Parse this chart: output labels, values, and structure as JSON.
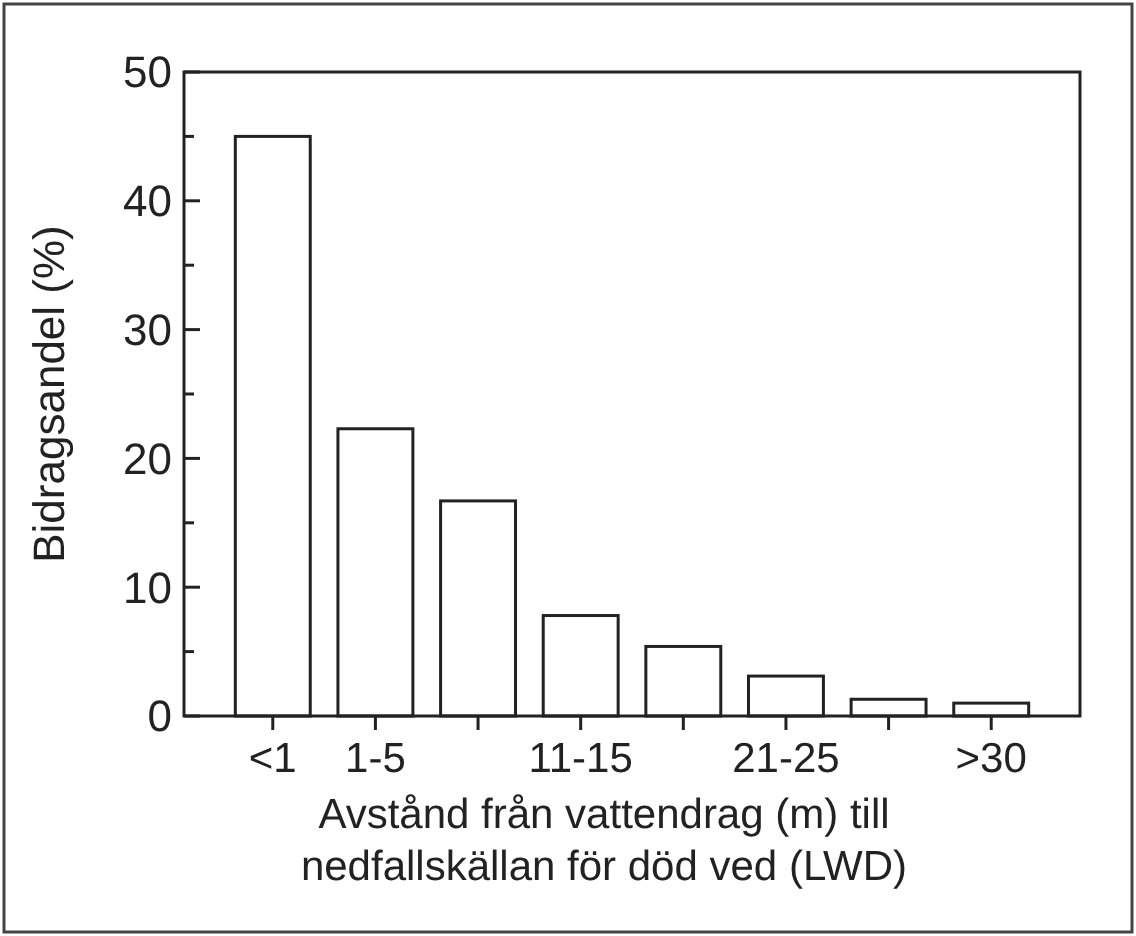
{
  "chart_data": {
    "type": "bar",
    "ylabel": "Bidragsandel (%)",
    "xlabel": "Avstånd från vattendrag (m) till\nnedfallskällan för död ved (LWD)",
    "categories": [
      "<1",
      "1-5",
      null,
      "11-15",
      null,
      "21-25",
      null,
      ">30"
    ],
    "values": [
      45,
      22.3,
      16.7,
      7.8,
      5.4,
      3.1,
      1.3,
      1.0
    ],
    "color": "#ffffff",
    "ylim": [
      0,
      50
    ],
    "yticks": [
      0,
      {
        "value": 5,
        "label": null
      },
      10,
      {
        "value": 15,
        "label": null
      },
      20,
      {
        "value": 25,
        "label": null
      },
      30,
      {
        "value": 35,
        "label": null
      },
      40,
      {
        "value": 45,
        "label": null
      },
      50
    ],
    "grid": false
  }
}
